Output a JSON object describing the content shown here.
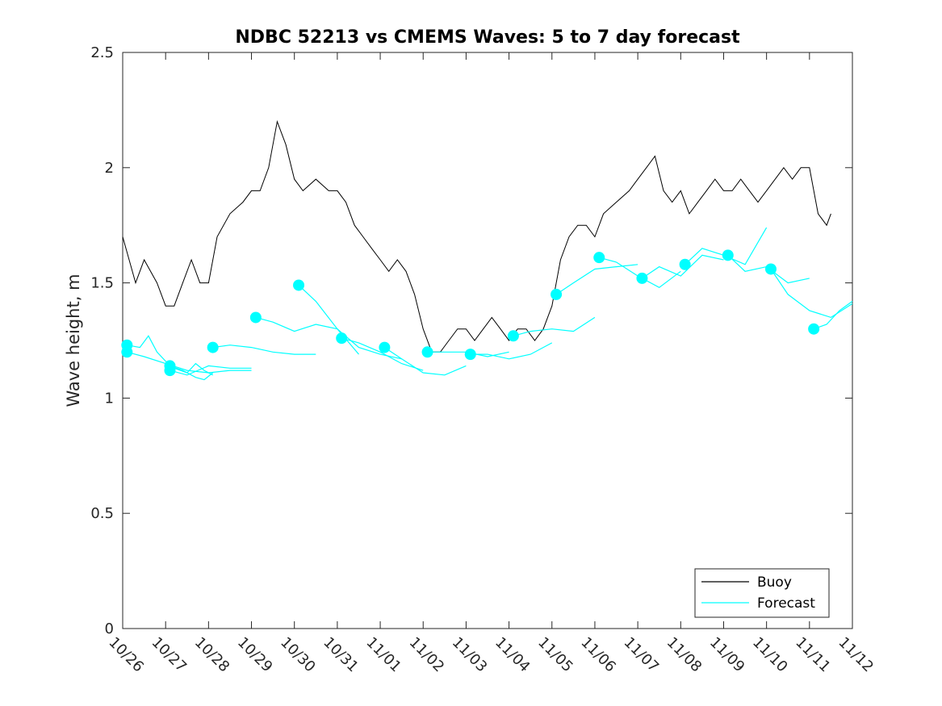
{
  "chart_data": {
    "type": "line",
    "title": "NDBC 52213 vs CMEMS Waves: 5 to 7 day forecast",
    "xlabel": "",
    "ylabel": "Wave height, m",
    "xlim": [
      0,
      17
    ],
    "ylim": [
      0,
      2.5
    ],
    "yticks": [
      0,
      0.5,
      1,
      1.5,
      2,
      2.5
    ],
    "ytick_labels": [
      "0",
      "0.5",
      "1",
      "1.5",
      "2",
      "2.5"
    ],
    "x_tick_labels": [
      "10/26",
      "10/27",
      "10/28",
      "10/29",
      "10/30",
      "10/31",
      "11/01",
      "11/02",
      "11/03",
      "11/04",
      "11/05",
      "11/06",
      "11/07",
      "11/08",
      "11/09",
      "11/10",
      "11/11",
      "11/12"
    ],
    "legend": {
      "location": "bottom-right",
      "entries": [
        {
          "label": "Buoy",
          "color": "#000000"
        },
        {
          "label": "Forecast",
          "color": "#00ffff"
        }
      ]
    },
    "series": [
      {
        "name": "Buoy",
        "color": "#000000",
        "x": [
          0,
          0.3,
          0.5,
          0.8,
          1.0,
          1.2,
          1.4,
          1.6,
          1.8,
          2.0,
          2.2,
          2.5,
          2.8,
          3.0,
          3.2,
          3.4,
          3.6,
          3.8,
          4.0,
          4.2,
          4.5,
          4.8,
          5.0,
          5.2,
          5.4,
          5.6,
          5.8,
          6.0,
          6.2,
          6.4,
          6.6,
          6.8,
          7.0,
          7.2,
          7.4,
          7.6,
          7.8,
          8.0,
          8.2,
          8.4,
          8.6,
          8.8,
          9.0,
          9.2,
          9.4,
          9.6,
          9.8,
          10.0,
          10.2,
          10.4,
          10.6,
          10.8,
          11.0,
          11.2,
          11.5,
          11.8,
          12.0,
          12.2,
          12.4,
          12.6,
          12.8,
          13.0,
          13.2,
          13.4,
          13.6,
          13.8,
          14.0,
          14.2,
          14.4,
          14.6,
          14.8,
          15.0,
          15.2,
          15.4,
          15.6,
          15.8,
          16.0,
          16.2,
          16.4,
          16.5
        ],
        "y": [
          1.7,
          1.5,
          1.6,
          1.5,
          1.4,
          1.4,
          1.5,
          1.6,
          1.5,
          1.5,
          1.7,
          1.8,
          1.85,
          1.9,
          1.9,
          2.0,
          2.2,
          2.1,
          1.95,
          1.9,
          1.95,
          1.9,
          1.9,
          1.85,
          1.75,
          1.7,
          1.65,
          1.6,
          1.55,
          1.6,
          1.55,
          1.45,
          1.3,
          1.2,
          1.2,
          1.25,
          1.3,
          1.3,
          1.25,
          1.3,
          1.35,
          1.3,
          1.25,
          1.3,
          1.3,
          1.25,
          1.3,
          1.4,
          1.6,
          1.7,
          1.75,
          1.75,
          1.7,
          1.8,
          1.85,
          1.9,
          1.95,
          2.0,
          2.05,
          1.9,
          1.85,
          1.9,
          1.8,
          1.85,
          1.9,
          1.95,
          1.9,
          1.9,
          1.95,
          1.9,
          1.85,
          1.9,
          1.95,
          2.0,
          1.95,
          2.0,
          2.0,
          1.8,
          1.75,
          1.8
        ]
      },
      {
        "name": "Forecast",
        "color": "#00ffff",
        "segments": [
          {
            "x": [
              0.1,
              0.4,
              0.6,
              0.8,
              1.0,
              1.2,
              1.5,
              1.7,
              1.9,
              2.1
            ],
            "y": [
              1.23,
              1.22,
              1.27,
              1.2,
              1.16,
              1.13,
              1.11,
              1.15,
              1.12,
              1.1
            ]
          },
          {
            "x": [
              0.1,
              0.5,
              1.0,
              1.5,
              2.0,
              2.5,
              3.0
            ],
            "y": [
              1.2,
              1.18,
              1.15,
              1.12,
              1.11,
              1.12,
              1.12
            ]
          },
          {
            "x": [
              1.1,
              1.4,
              1.7,
              1.9,
              2.1
            ],
            "y": [
              1.14,
              1.12,
              1.09,
              1.08,
              1.11
            ]
          },
          {
            "x": [
              1.1,
              1.5,
              2.0,
              2.5,
              3.0
            ],
            "y": [
              1.12,
              1.1,
              1.14,
              1.13,
              1.13
            ]
          },
          {
            "x": [
              2.1,
              2.5,
              3.0,
              3.5,
              4.0,
              4.5
            ],
            "y": [
              1.22,
              1.23,
              1.22,
              1.2,
              1.19,
              1.19
            ]
          },
          {
            "x": [
              3.1,
              3.5,
              4.0,
              4.5,
              5.0,
              5.5
            ],
            "y": [
              1.35,
              1.33,
              1.29,
              1.32,
              1.3,
              1.19
            ]
          },
          {
            "x": [
              4.1,
              4.5,
              5.0,
              5.5,
              6.0,
              6.5
            ],
            "y": [
              1.49,
              1.42,
              1.3,
              1.22,
              1.19,
              1.17
            ]
          },
          {
            "x": [
              5.1,
              5.5,
              6.0,
              6.5,
              7.0
            ],
            "y": [
              1.26,
              1.24,
              1.2,
              1.15,
              1.12
            ]
          },
          {
            "x": [
              6.1,
              6.5,
              7.0,
              7.5,
              8.0
            ],
            "y": [
              1.22,
              1.17,
              1.11,
              1.1,
              1.14
            ]
          },
          {
            "x": [
              7.1,
              7.5,
              8.0,
              8.5,
              9.0
            ],
            "y": [
              1.2,
              1.2,
              1.2,
              1.18,
              1.2
            ]
          },
          {
            "x": [
              8.1,
              8.5,
              9.0,
              9.5,
              10.0
            ],
            "y": [
              1.19,
              1.19,
              1.17,
              1.19,
              1.24
            ]
          },
          {
            "x": [
              9.1,
              9.5,
              10.0,
              10.5,
              11.0
            ],
            "y": [
              1.27,
              1.29,
              1.3,
              1.29,
              1.35
            ]
          },
          {
            "x": [
              10.1,
              10.5,
              11.0,
              11.5,
              12.0
            ],
            "y": [
              1.45,
              1.5,
              1.56,
              1.57,
              1.58
            ]
          },
          {
            "x": [
              11.1,
              11.5,
              12.0,
              12.5,
              13.0
            ],
            "y": [
              1.61,
              1.59,
              1.53,
              1.48,
              1.55
            ]
          },
          {
            "x": [
              12.1,
              12.5,
              13.0,
              13.5,
              14.0
            ],
            "y": [
              1.52,
              1.57,
              1.53,
              1.62,
              1.6
            ]
          },
          {
            "x": [
              13.1,
              13.5,
              14.0,
              14.5,
              15.0
            ],
            "y": [
              1.58,
              1.65,
              1.62,
              1.58,
              1.74
            ]
          },
          {
            "x": [
              14.1,
              14.5,
              15.0,
              15.5,
              16.0
            ],
            "y": [
              1.62,
              1.55,
              1.57,
              1.5,
              1.52
            ]
          },
          {
            "x": [
              15.1,
              15.5,
              16.0,
              16.5,
              17.0
            ],
            "y": [
              1.56,
              1.45,
              1.38,
              1.35,
              1.41
            ]
          },
          {
            "x": [
              16.1,
              16.4,
              16.7,
              17.0
            ],
            "y": [
              1.3,
              1.32,
              1.38,
              1.42
            ]
          }
        ],
        "markers": {
          "x": [
            0.1,
            0.1,
            1.1,
            1.1,
            2.1,
            3.1,
            4.1,
            5.1,
            6.1,
            7.1,
            8.1,
            9.1,
            10.1,
            11.1,
            12.1,
            13.1,
            14.1,
            15.1,
            16.1
          ],
          "y": [
            1.23,
            1.2,
            1.14,
            1.12,
            1.22,
            1.35,
            1.49,
            1.26,
            1.22,
            1.2,
            1.19,
            1.27,
            1.45,
            1.61,
            1.52,
            1.58,
            1.62,
            1.56,
            1.3
          ]
        }
      }
    ]
  }
}
